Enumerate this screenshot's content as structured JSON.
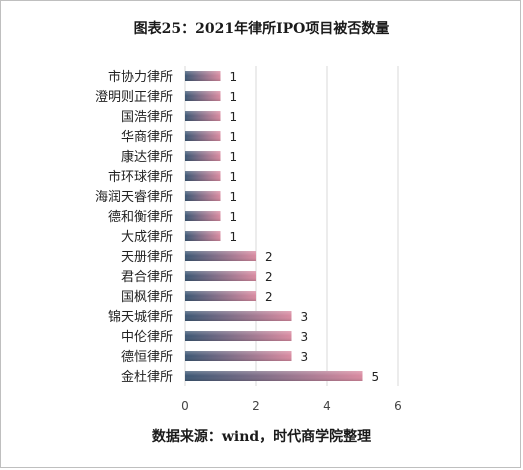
{
  "title": "图表25：2021年律所IPO项目被否数量",
  "source": "数据来源：wind，时代商学院整理",
  "colors": {
    "bar_dark": "#3b5673",
    "bar_light": "#d98aa0",
    "grid": "#d9d9d9"
  },
  "chart_data": {
    "type": "bar",
    "orientation": "horizontal",
    "categories": [
      "市协力律所",
      "澄明则正律所",
      "国浩律所",
      "华商律所",
      "康达律所",
      "市环球律所",
      "海润天睿律所",
      "德和衡律所",
      "大成律所",
      "天册律所",
      "君合律所",
      "国枫律所",
      "锦天城律所",
      "中伦律所",
      "德恒律所",
      "金杜律所"
    ],
    "values": [
      1,
      1,
      1,
      1,
      1,
      1,
      1,
      1,
      1,
      2,
      2,
      2,
      3,
      3,
      3,
      5
    ],
    "xlim": [
      0,
      6
    ],
    "xticks": [
      "0",
      "2",
      "4",
      "6"
    ],
    "grid": true,
    "legend": "none"
  }
}
